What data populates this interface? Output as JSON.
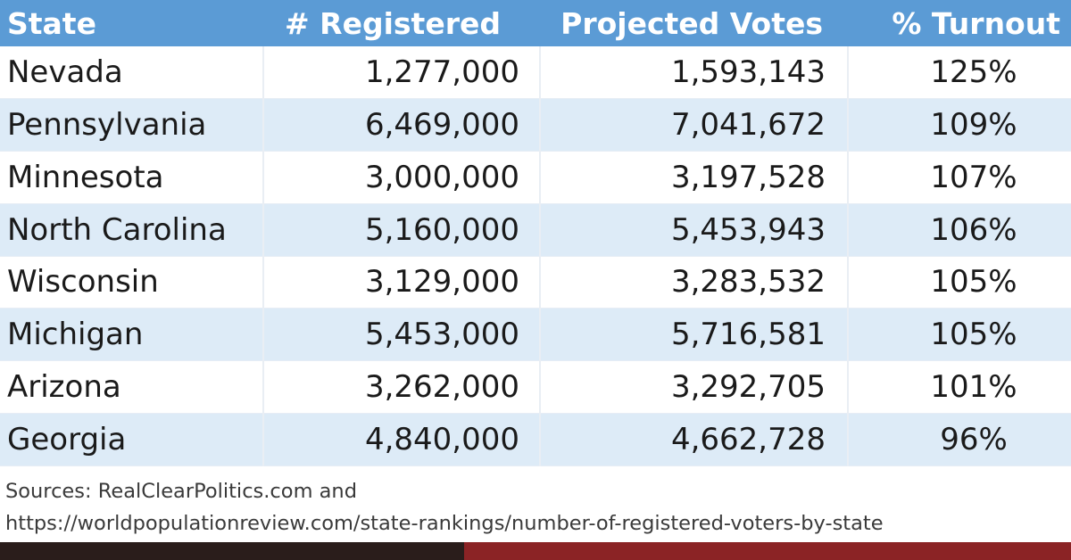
{
  "chart_data": {
    "type": "table",
    "columns": [
      "State",
      "# Registered",
      "Projected Votes",
      "% Turnout"
    ],
    "rows": [
      {
        "state": "Nevada",
        "registered": "1,277,000",
        "projected": "1,593,143",
        "turnout": "125%"
      },
      {
        "state": "Pennsylvania",
        "registered": "6,469,000",
        "projected": "7,041,672",
        "turnout": "109%"
      },
      {
        "state": "Minnesota",
        "registered": "3,000,000",
        "projected": "3,197,528",
        "turnout": "107%"
      },
      {
        "state": "North Carolina",
        "registered": "5,160,000",
        "projected": "5,453,943",
        "turnout": "106%"
      },
      {
        "state": "Wisconsin",
        "registered": "3,129,000",
        "projected": "3,283,532",
        "turnout": "105%"
      },
      {
        "state": "Michigan",
        "registered": "5,453,000",
        "projected": "5,716,581",
        "turnout": "105%"
      },
      {
        "state": "Arizona",
        "registered": "3,262,000",
        "projected": "3,292,705",
        "turnout": "101%"
      },
      {
        "state": "Georgia",
        "registered": "4,840,000",
        "projected": "4,662,728",
        "turnout": "96%"
      }
    ],
    "sources": [
      "Sources: RealClearPolitics.com and",
      "https://worldpopulationreview.com/state-rankings/number-of-registered-voters-by-state"
    ]
  },
  "colors": {
    "header_bg": "#5b9bd5",
    "header_text": "#ffffff",
    "row_alt_bg": "#ddebf7",
    "row_bg": "#ffffff"
  }
}
